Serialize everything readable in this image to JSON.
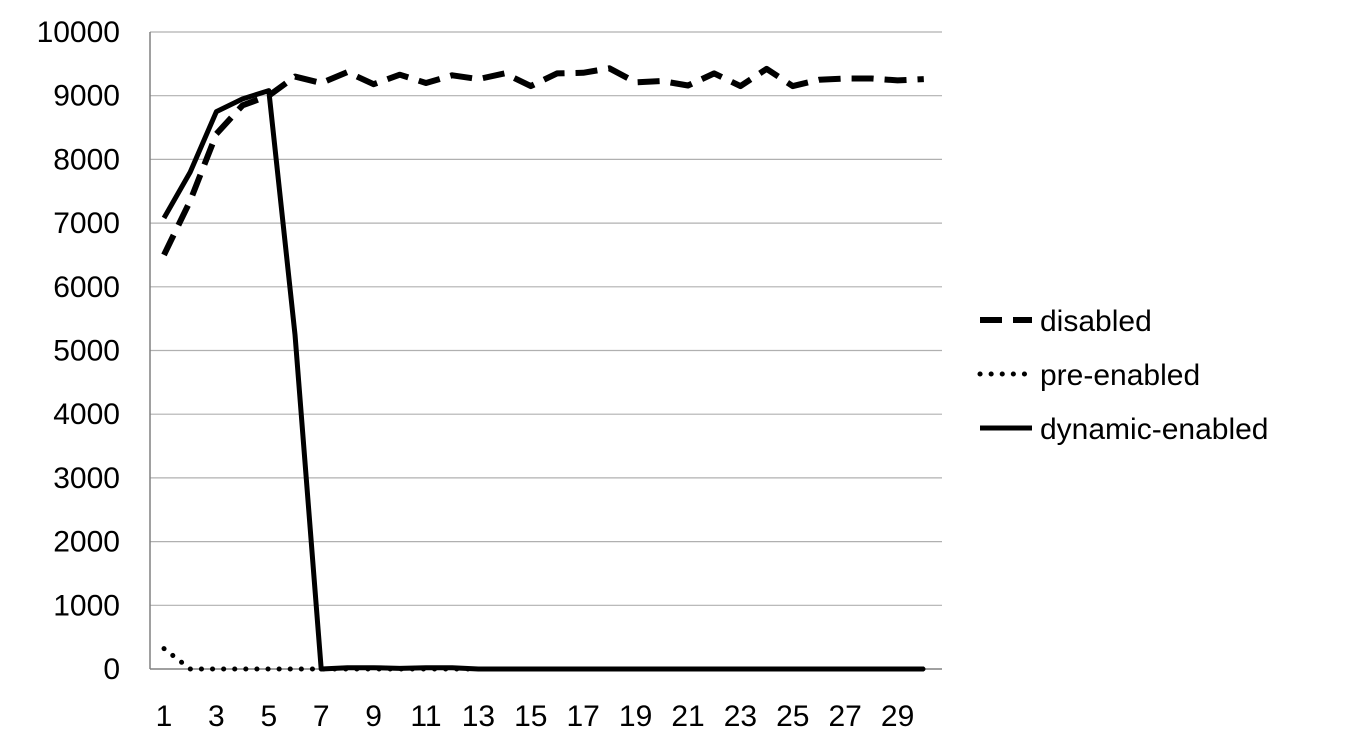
{
  "chart_data": {
    "type": "line",
    "title": "",
    "xlabel": "",
    "ylabel": "",
    "x": [
      1,
      2,
      3,
      4,
      5,
      6,
      7,
      8,
      9,
      10,
      11,
      12,
      13,
      14,
      15,
      16,
      17,
      18,
      19,
      20,
      21,
      22,
      23,
      24,
      25,
      26,
      27,
      28,
      29,
      30
    ],
    "xticks": [
      "1",
      "3",
      "5",
      "7",
      "9",
      "11",
      "13",
      "15",
      "17",
      "19",
      "21",
      "23",
      "25",
      "27",
      "29"
    ],
    "yticks": [
      "0",
      "1000",
      "2000",
      "3000",
      "4000",
      "5000",
      "6000",
      "7000",
      "8000",
      "9000",
      "10000"
    ],
    "ylim": [
      0,
      10000
    ],
    "grid": "horizontal",
    "legend_position": "right",
    "series": [
      {
        "name": "disabled",
        "style": "dashed",
        "values": [
          6500,
          7350,
          8400,
          8850,
          9000,
          9300,
          9200,
          9370,
          9180,
          9330,
          9200,
          9320,
          9260,
          9350,
          9150,
          9350,
          9360,
          9430,
          9210,
          9230,
          9160,
          9350,
          9150,
          9420,
          9150,
          9250,
          9270,
          9270,
          9240,
          9260
        ]
      },
      {
        "name": "pre-enabled",
        "style": "dotted",
        "values": [
          320,
          0,
          0,
          0,
          0,
          0,
          0,
          0,
          0,
          0,
          0,
          0,
          0,
          0,
          0,
          0,
          0,
          0,
          0,
          0,
          0,
          0,
          0,
          0,
          0,
          0,
          0,
          0,
          0,
          0
        ]
      },
      {
        "name": "dynamic-enabled",
        "style": "solid",
        "values": [
          7080,
          7800,
          8750,
          8950,
          9080,
          5250,
          0,
          20,
          20,
          10,
          20,
          20,
          0,
          0,
          0,
          0,
          0,
          0,
          0,
          0,
          0,
          0,
          0,
          0,
          0,
          0,
          0,
          0,
          0,
          0
        ]
      }
    ]
  },
  "colors": {
    "line": "#000000",
    "grid": "#b0b0b0",
    "axis": "#808080"
  }
}
